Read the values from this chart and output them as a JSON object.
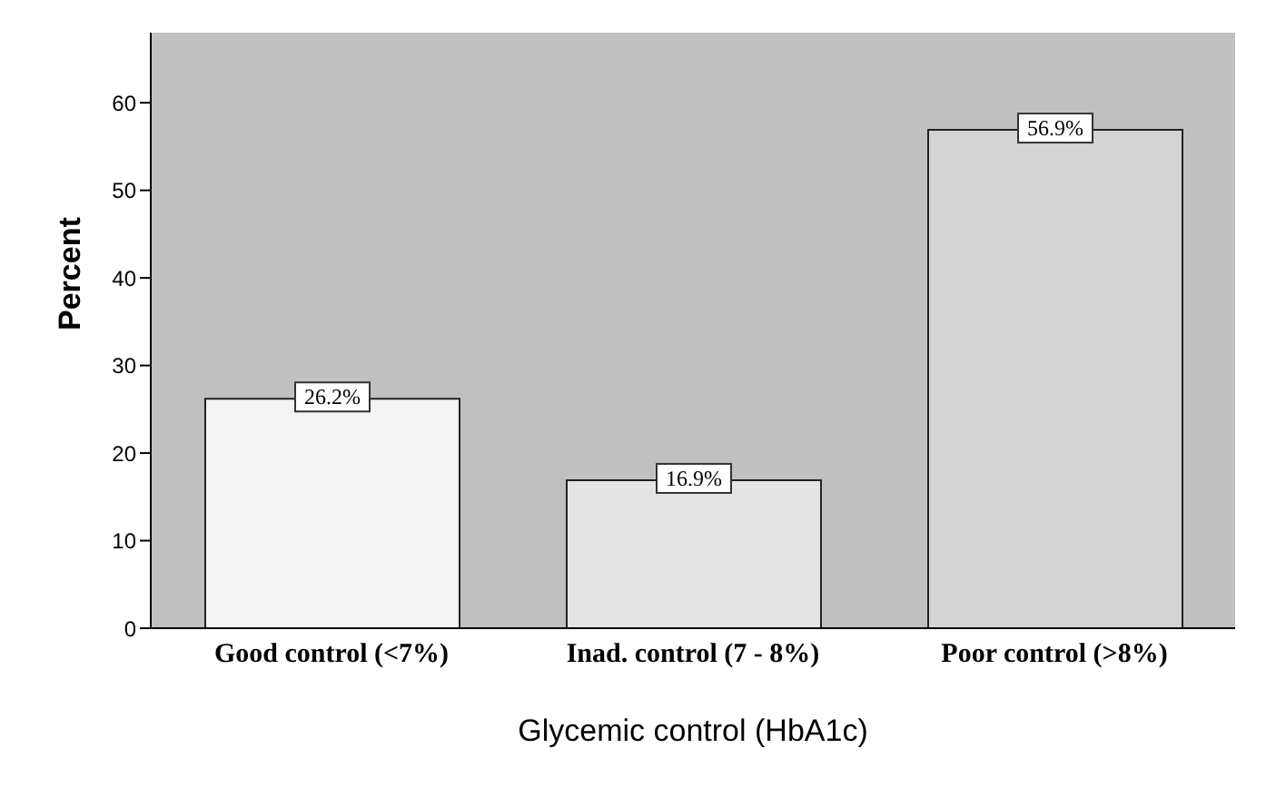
{
  "chart_data": {
    "type": "bar",
    "xlabel": "Glycemic control (HbA1c)",
    "ylabel": "Percent",
    "categories": [
      "Good control (<7%)",
      "Inad. control (7 - 8%)",
      "Poor control (>8%)"
    ],
    "values": [
      26.2,
      16.9,
      56.9
    ],
    "value_labels": [
      "26.2%",
      "16.9%",
      "56.9%"
    ],
    "colors": [
      "#f4f4f4",
      "#e4e4e4",
      "#d4d4d4"
    ],
    "ylim": [
      0,
      68
    ],
    "yticks": [
      0,
      10,
      20,
      30,
      40,
      50,
      60
    ],
    "grid": false
  }
}
